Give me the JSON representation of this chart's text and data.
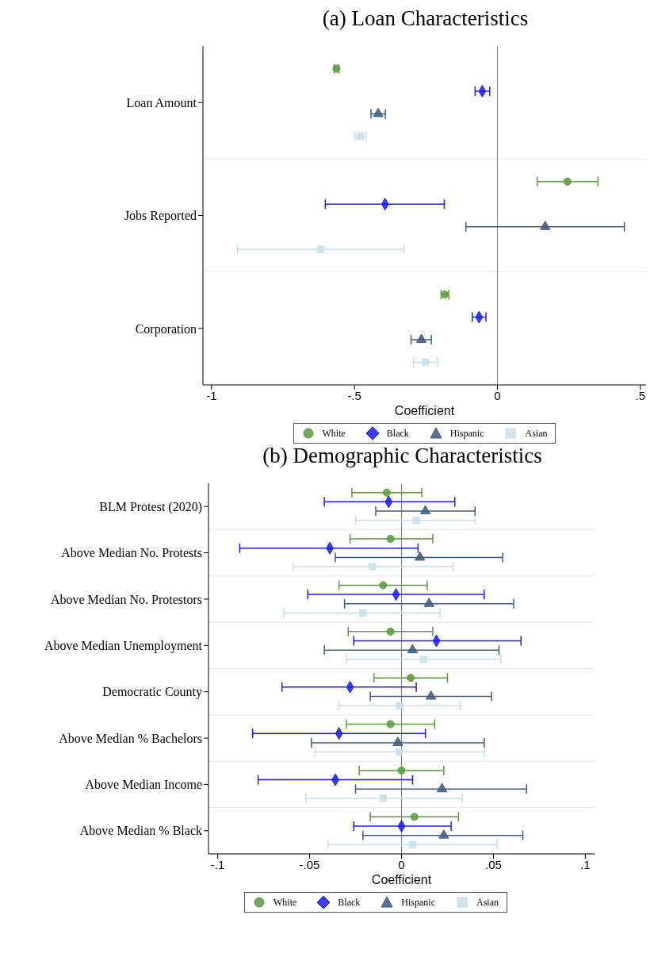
{
  "chart_data": [
    {
      "type": "scatter",
      "orientation": "horizontal",
      "title": "(a) Loan Characteristics",
      "xlabel": "Coefficient",
      "categories": [
        "Loan Amount",
        "Jobs Reported",
        "Corporation"
      ],
      "series": [
        {
          "name": "White",
          "color": "#5a9a3c",
          "marker": "circle",
          "values": [
            -0.563,
            0.245,
            -0.184
          ],
          "errors": [
            [
              -0.571,
              -0.555
            ],
            [
              0.139,
              0.352
            ],
            [
              -0.197,
              -0.17
            ]
          ]
        },
        {
          "name": "Black",
          "color": "#1a1aff",
          "marker": "diamond",
          "values": [
            -0.053,
            -0.393,
            -0.064
          ],
          "errors": [
            [
              -0.078,
              -0.027
            ],
            [
              -0.602,
              -0.186
            ],
            [
              -0.088,
              -0.04
            ]
          ]
        },
        {
          "name": "Hispanic",
          "color": "#3d5a80",
          "marker": "triangle",
          "values": [
            -0.417,
            0.167,
            -0.266
          ],
          "errors": [
            [
              -0.442,
              -0.392
            ],
            [
              -0.11,
              0.444
            ],
            [
              -0.302,
              -0.231
            ]
          ]
        },
        {
          "name": "Asian",
          "color": "#c5dfe9",
          "marker": "square",
          "values": [
            -0.479,
            -0.618,
            -0.252
          ],
          "errors": [
            [
              -0.498,
              -0.46
            ],
            [
              -0.909,
              -0.327
            ],
            [
              -0.294,
              -0.209
            ]
          ]
        }
      ],
      "xlim": [
        -1.03,
        0.52
      ],
      "xticks": [
        {
          "value": -1,
          "label": "-1"
        },
        {
          "value": -0.5,
          "label": "-.5"
        },
        0,
        {
          "value": 0.5,
          "label": ".5"
        }
      ],
      "ref_lines": [
        {
          "axis": "x",
          "value": 0,
          "color": "#808080"
        }
      ],
      "grid": "y",
      "legend": "bottom"
    },
    {
      "type": "scatter",
      "orientation": "horizontal",
      "title": "(b) Demographic Characteristics",
      "xlabel": "Coefficient",
      "categories": [
        "BLM Protest (2020)",
        "Above Median No. Protests",
        "Above Median No. Protestors",
        "Above Median Unemployment",
        "Democratic County",
        "Above Median % Bachelors",
        "Above Median Income",
        "Above Median % Black"
      ],
      "series": [
        {
          "name": "White",
          "color": "#5a9a3c",
          "marker": "circle",
          "values": [
            -0.008,
            -0.006,
            -0.01,
            -0.006,
            0.005,
            -0.006,
            0.0,
            0.007
          ],
          "errors": [
            [
              -0.027,
              0.011
            ],
            [
              -0.028,
              0.017
            ],
            [
              -0.034,
              0.014
            ],
            [
              -0.029,
              0.017
            ],
            [
              -0.015,
              0.025
            ],
            [
              -0.03,
              0.018
            ],
            [
              -0.023,
              0.023
            ],
            [
              -0.017,
              0.031
            ]
          ]
        },
        {
          "name": "Black",
          "color": "#1a1aff",
          "marker": "diamond",
          "values": [
            -0.007,
            -0.039,
            -0.003,
            0.019,
            -0.028,
            -0.034,
            -0.036,
            0.0
          ],
          "errors": [
            [
              -0.042,
              0.029
            ],
            [
              -0.088,
              0.009
            ],
            [
              -0.051,
              0.045
            ],
            [
              -0.026,
              0.065
            ],
            [
              -0.065,
              0.008
            ],
            [
              -0.081,
              0.013
            ],
            [
              -0.078,
              0.006
            ],
            [
              -0.026,
              0.027
            ]
          ]
        },
        {
          "name": "Hispanic",
          "color": "#3d5a80",
          "marker": "triangle",
          "values": [
            0.013,
            0.01,
            0.015,
            0.006,
            0.016,
            -0.002,
            0.022,
            0.023
          ],
          "errors": [
            [
              -0.014,
              0.04
            ],
            [
              -0.036,
              0.055
            ],
            [
              -0.031,
              0.061
            ],
            [
              -0.042,
              0.053
            ],
            [
              -0.017,
              0.049
            ],
            [
              -0.049,
              0.045
            ],
            [
              -0.025,
              0.068
            ],
            [
              -0.021,
              0.066
            ]
          ]
        },
        {
          "name": "Asian",
          "color": "#c5dfe9",
          "marker": "square",
          "values": [
            0.008,
            -0.016,
            -0.021,
            0.012,
            -0.001,
            -0.001,
            -0.01,
            0.006
          ],
          "errors": [
            [
              -0.025,
              0.04
            ],
            [
              -0.059,
              0.028
            ],
            [
              -0.064,
              0.021
            ],
            [
              -0.03,
              0.054
            ],
            [
              -0.034,
              0.032
            ],
            [
              -0.047,
              0.045
            ],
            [
              -0.052,
              0.033
            ],
            [
              -0.04,
              0.052
            ]
          ]
        }
      ],
      "xlim": [
        -0.105,
        0.105
      ],
      "xticks": [
        {
          "value": -0.1,
          "label": "-.1"
        },
        {
          "value": -0.05,
          "label": "-.05"
        },
        0,
        {
          "value": 0.05,
          "label": ".05"
        },
        {
          "value": 0.1,
          "label": ".1"
        }
      ],
      "ref_lines": [
        {
          "axis": "x",
          "value": 0,
          "color": "#808080"
        }
      ],
      "grid": "y",
      "legend": "bottom"
    }
  ]
}
